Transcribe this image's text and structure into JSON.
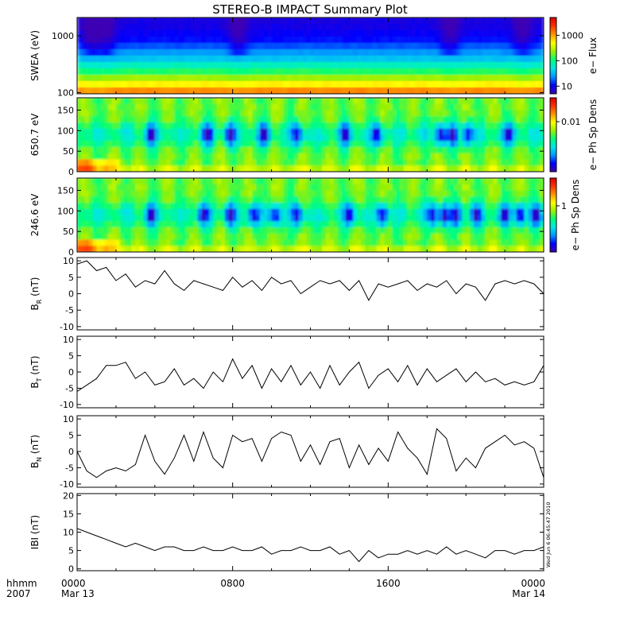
{
  "title": "STEREO-B IMPACT Summary Plot",
  "time_axis": {
    "corner_labels": [
      "hhmm",
      "2007"
    ],
    "ticks": [
      {
        "hhmm": "0000",
        "date": "Mar 13",
        "hour": 0
      },
      {
        "hhmm": "0800",
        "date": "",
        "hour": 8
      },
      {
        "hhmm": "1600",
        "date": "",
        "hour": 16
      },
      {
        "hhmm": "0000",
        "date": "Mar 14",
        "hour": 24
      }
    ]
  },
  "timestamp_stamp": "Wed Jun  6 06:45:47 2010",
  "colors": {
    "background": "#ffffff",
    "line": "#000000",
    "colormap": [
      "#3c00b4",
      "#0000ff",
      "#0096ff",
      "#00e6e6",
      "#00ff78",
      "#9bf000",
      "#ffff00",
      "#ff9600",
      "#ff3200",
      "#dc0000"
    ]
  },
  "chart_data": [
    {
      "type": "heatmap",
      "ylabel": "SWEA (eV)",
      "yscale": "log",
      "ylim": [
        95,
        2100
      ],
      "yticks": [
        "1000",
        "100"
      ],
      "colorbar": {
        "label": "e− Flux",
        "scale": "log",
        "range": [
          5,
          5000
        ],
        "ticks": [
          "1000",
          "100",
          "10"
        ]
      },
      "energy_rows_eV": [
        100,
        200,
        400,
        800,
        1600
      ],
      "flux_by_energy": [
        1500,
        180,
        35,
        12,
        8
      ],
      "time_hours_dark_bands": [
        0.7,
        1.5,
        8.3,
        19.2,
        22.9
      ]
    },
    {
      "type": "heatmap",
      "ylabel": "650.7 eV",
      "ylim": [
        0,
        180
      ],
      "yticks": [
        "150",
        "100",
        "50",
        "0"
      ],
      "colorbar": {
        "label": "e− Ph Sp Dens",
        "scale": "log",
        "range": [
          0.001,
          0.03
        ],
        "ticks": [
          "0.01"
        ]
      },
      "dips_pitch_angle": 90,
      "dips_time_hours": [
        3.8,
        6.7,
        7.9,
        9.6,
        11.3,
        13.8,
        15.4,
        18.7,
        19.3,
        20.1,
        22.2
      ]
    },
    {
      "type": "heatmap",
      "ylabel": "246.6 eV",
      "ylim": [
        0,
        180
      ],
      "yticks": [
        "150",
        "100",
        "50",
        "0"
      ],
      "colorbar": {
        "label": "e− Ph Sp Dens",
        "scale": "log",
        "range": [
          0.1,
          4
        ],
        "ticks": [
          "1"
        ]
      },
      "dips_pitch_angle": 90,
      "dips_time_hours": [
        3.8,
        6.5,
        7.9,
        9.1,
        10.2,
        11.3,
        14.0,
        15.7,
        18.3,
        18.9,
        19.5,
        20.5,
        22.0,
        22.8,
        23.6
      ]
    },
    {
      "type": "line",
      "ylabel": "B_R (nT)",
      "ylabel_parts": {
        "main": "B",
        "sub": "R",
        "unit": "(nT)"
      },
      "ylim": [
        -11,
        11
      ],
      "yticks": [
        "10",
        "5",
        "0",
        "-5",
        "-10"
      ],
      "x": [
        0,
        0.5,
        1,
        1.5,
        2,
        2.5,
        3,
        3.5,
        4,
        4.5,
        5,
        5.5,
        6,
        6.5,
        7,
        7.5,
        8,
        8.5,
        9,
        9.5,
        10,
        10.5,
        11,
        11.5,
        12,
        12.5,
        13,
        13.5,
        14,
        14.5,
        15,
        15.5,
        16,
        16.5,
        17,
        17.5,
        18,
        18.5,
        19,
        19.5,
        20,
        20.5,
        21,
        21.5,
        22,
        22.5,
        23,
        23.5,
        24
      ],
      "values": [
        9,
        10,
        7,
        8,
        4,
        6,
        2,
        4,
        3,
        7,
        3,
        1,
        4,
        3,
        2,
        1,
        5,
        2,
        4,
        1,
        5,
        3,
        4,
        0,
        2,
        4,
        3,
        4,
        1,
        4,
        -2,
        3,
        2,
        3,
        4,
        1,
        3,
        2,
        4,
        0,
        3,
        2,
        -2,
        3,
        4,
        3,
        4,
        3,
        0
      ]
    },
    {
      "type": "line",
      "ylabel": "B_T (nT)",
      "ylabel_parts": {
        "main": "B",
        "sub": "T",
        "unit": "(nT)"
      },
      "ylim": [
        -11,
        11
      ],
      "yticks": [
        "10",
        "5",
        "0",
        "-5",
        "-10"
      ],
      "x": [
        0,
        0.5,
        1,
        1.5,
        2,
        2.5,
        3,
        3.5,
        4,
        4.5,
        5,
        5.5,
        6,
        6.5,
        7,
        7.5,
        8,
        8.5,
        9,
        9.5,
        10,
        10.5,
        11,
        11.5,
        12,
        12.5,
        13,
        13.5,
        14,
        14.5,
        15,
        15.5,
        16,
        16.5,
        17,
        17.5,
        18,
        18.5,
        19,
        19.5,
        20,
        20.5,
        21,
        21.5,
        22,
        22.5,
        23,
        23.5,
        24
      ],
      "values": [
        -6,
        -4,
        -2,
        2,
        2,
        3,
        -2,
        0,
        -4,
        -3,
        1,
        -4,
        -2,
        -5,
        0,
        -3,
        4,
        -2,
        2,
        -5,
        1,
        -3,
        2,
        -4,
        0,
        -5,
        2,
        -4,
        0,
        3,
        -5,
        -1,
        1,
        -3,
        2,
        -4,
        1,
        -3,
        -1,
        1,
        -3,
        0,
        -3,
        -2,
        -4,
        -3,
        -4,
        -3,
        2
      ]
    },
    {
      "type": "line",
      "ylabel": "B_N (nT)",
      "ylabel_parts": {
        "main": "B",
        "sub": "N",
        "unit": "(nT)"
      },
      "ylim": [
        -11,
        11
      ],
      "yticks": [
        "10",
        "5",
        "0",
        "-5",
        "-10"
      ],
      "x": [
        0,
        0.5,
        1,
        1.5,
        2,
        2.5,
        3,
        3.5,
        4,
        4.5,
        5,
        5.5,
        6,
        6.5,
        7,
        7.5,
        8,
        8.5,
        9,
        9.5,
        10,
        10.5,
        11,
        11.5,
        12,
        12.5,
        13,
        13.5,
        14,
        14.5,
        15,
        15.5,
        16,
        16.5,
        17,
        17.5,
        18,
        18.5,
        19,
        19.5,
        20,
        20.5,
        21,
        21.5,
        22,
        22.5,
        23,
        23.5,
        24
      ],
      "values": [
        0,
        -6,
        -8,
        -6,
        -5,
        -6,
        -4,
        5,
        -3,
        -7,
        -2,
        5,
        -3,
        6,
        -2,
        -5,
        5,
        3,
        4,
        -3,
        4,
        6,
        5,
        -3,
        2,
        -4,
        3,
        4,
        -5,
        2,
        -4,
        1,
        -3,
        6,
        1,
        -2,
        -7,
        7,
        4,
        -6,
        -2,
        -5,
        1,
        3,
        5,
        2,
        3,
        1,
        -8
      ]
    },
    {
      "type": "line",
      "ylabel": "|B| (nT)",
      "ylabel_parts": {
        "main": "IBI",
        "sub": "",
        "unit": "(nT)"
      },
      "ylim": [
        -0.5,
        20.5
      ],
      "yticks": [
        "20",
        "15",
        "10",
        "5",
        "0"
      ],
      "x": [
        0,
        0.5,
        1,
        1.5,
        2,
        2.5,
        3,
        3.5,
        4,
        4.5,
        5,
        5.5,
        6,
        6.5,
        7,
        7.5,
        8,
        8.5,
        9,
        9.5,
        10,
        10.5,
        11,
        11.5,
        12,
        12.5,
        13,
        13.5,
        14,
        14.5,
        15,
        15.5,
        16,
        16.5,
        17,
        17.5,
        18,
        18.5,
        19,
        19.5,
        20,
        20.5,
        21,
        21.5,
        22,
        22.5,
        23,
        23.5,
        24
      ],
      "values": [
        11,
        10,
        9,
        8,
        7,
        6,
        7,
        6,
        5,
        6,
        6,
        5,
        5,
        6,
        5,
        5,
        6,
        5,
        5,
        6,
        4,
        5,
        5,
        6,
        5,
        5,
        6,
        4,
        5,
        2,
        5,
        3,
        4,
        4,
        5,
        4,
        5,
        4,
        6,
        4,
        5,
        4,
        3,
        5,
        5,
        4,
        5,
        5,
        6
      ]
    }
  ]
}
